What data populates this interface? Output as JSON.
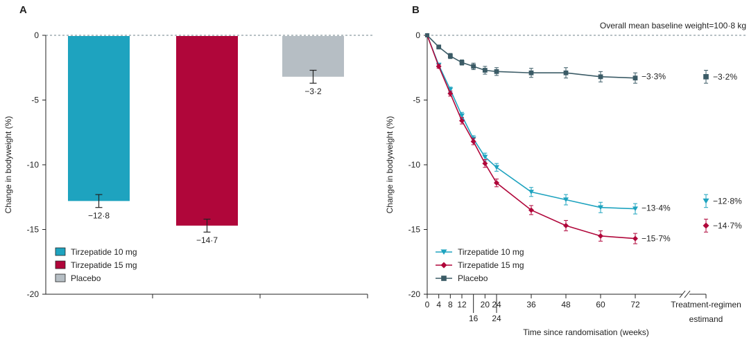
{
  "colors": {
    "tz10": "#1ea3bf",
    "tz15": "#b0063a",
    "placebo": "#3b5b66",
    "placebo_bar": "#b6bec4"
  },
  "chart_data": [
    {
      "panel": "A",
      "type": "bar",
      "ylabel": "Change in bodyweight (%)",
      "ylim": [
        -20,
        0
      ],
      "yticks": [
        0,
        -5,
        -10,
        -15,
        -20
      ],
      "ytick_labels": [
        "0",
        "-5",
        "-10",
        "-15",
        "-20"
      ],
      "categories": [
        "Tirzepatide 10 mg",
        "Tirzepatide 15 mg",
        "Placebo"
      ],
      "values": [
        -12.8,
        -14.7,
        -3.2
      ],
      "errors": [
        0.5,
        0.5,
        0.5
      ],
      "value_labels": [
        "−12·8",
        "−14·7",
        "−3·2"
      ],
      "legend": [
        "Tirzepatide 10 mg",
        "Tirzepatide 15 mg",
        "Placebo"
      ],
      "legend_position": "bottom-left"
    },
    {
      "panel": "B",
      "type": "line",
      "annotation": "Overall mean baseline weight=100·8 kg",
      "xlabel": "Time since randomisation (weeks)",
      "ylabel": "Change in bodyweight (%)",
      "ylim": [
        -20,
        0
      ],
      "yticks": [
        0,
        -5,
        -10,
        -15,
        -20
      ],
      "ytick_labels": [
        "0",
        "-5",
        "-10",
        "-15",
        "-20"
      ],
      "x": [
        0,
        4,
        8,
        12,
        16,
        20,
        24,
        36,
        48,
        60,
        72
      ],
      "xtick_upper": [
        "0",
        "4",
        "8",
        "12",
        "20",
        "24",
        "36",
        "48",
        "60",
        "72"
      ],
      "xtick_upper_values": [
        0,
        4,
        8,
        12,
        20,
        24,
        36,
        48,
        60,
        72
      ],
      "xtick_lower": [
        "16",
        "24"
      ],
      "xtick_lower_values": [
        16,
        24
      ],
      "extra_category_label": [
        "Treatment-regimen",
        "estimand"
      ],
      "series": [
        {
          "name": "Tirzepatide 10 mg",
          "values": [
            0,
            -2.3,
            -4.2,
            -6.2,
            -8.0,
            -9.4,
            -10.2,
            -12.1,
            -12.7,
            -13.3,
            -13.4
          ],
          "error": [
            0,
            0.15,
            0.2,
            0.25,
            0.25,
            0.3,
            0.3,
            0.35,
            0.4,
            0.4,
            0.4
          ],
          "end_label": "−13·4%",
          "estimand_value": -12.8,
          "estimand_label": "−12·8%"
        },
        {
          "name": "Tirzepatide 15 mg",
          "values": [
            0,
            -2.4,
            -4.5,
            -6.6,
            -8.2,
            -9.9,
            -11.4,
            -13.5,
            -14.7,
            -15.5,
            -15.7
          ],
          "error": [
            0,
            0.15,
            0.2,
            0.25,
            0.25,
            0.3,
            0.3,
            0.35,
            0.4,
            0.4,
            0.4
          ],
          "end_label": "−15·7%",
          "estimand_value": -14.7,
          "estimand_label": "−14·7%"
        },
        {
          "name": "Placebo",
          "values": [
            0,
            -0.9,
            -1.6,
            -2.1,
            -2.4,
            -2.7,
            -2.8,
            -2.9,
            -2.9,
            -3.2,
            -3.3
          ],
          "error": [
            0,
            0.15,
            0.2,
            0.2,
            0.25,
            0.3,
            0.3,
            0.35,
            0.4,
            0.4,
            0.4
          ],
          "end_label": "−3·3%",
          "estimand_value": -3.2,
          "estimand_label": "−3·2%"
        }
      ],
      "legend": [
        "Tirzepatide 10 mg",
        "Tirzepatide 15 mg",
        "Placebo"
      ],
      "legend_position": "bottom-left"
    }
  ]
}
